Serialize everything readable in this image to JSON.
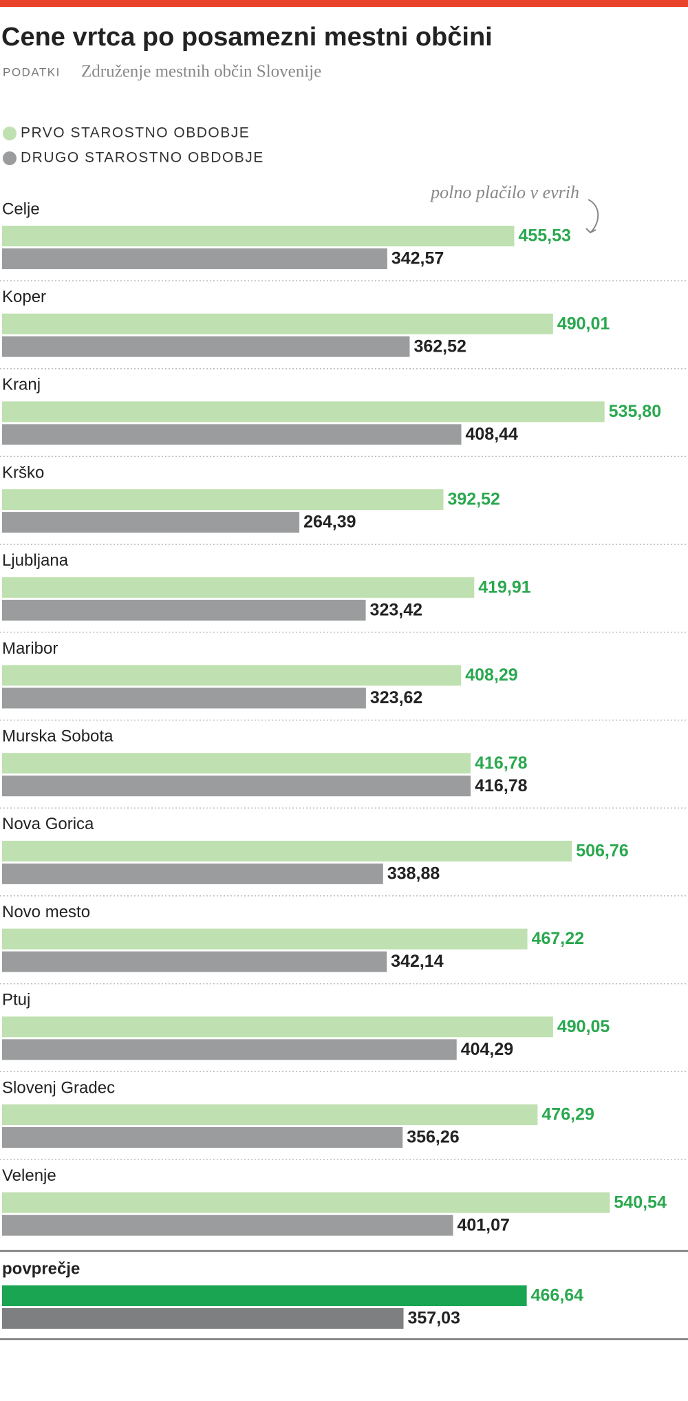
{
  "chart_data": {
    "type": "grouped-hbar",
    "title": "Cene vrtca po posamezni mestni občini",
    "source": {
      "label": "PODATKI",
      "text": "Združenje mestnih občin Slovenije"
    },
    "annotation": "polno plačilo v evrih",
    "categories": [
      "Celje",
      "Koper",
      "Kranj",
      "Krško",
      "Ljubljana",
      "Maribor",
      "Murska Sobota",
      "Nova Gorica",
      "Novo mesto",
      "Ptuj",
      "Slovenj Gradec",
      "Velenje"
    ],
    "series": [
      {
        "name": "PRVO STAROSTNO OBDOBJE",
        "color": "#bfe0b0",
        "label_color": "#2aa84f",
        "values": [
          455.53,
          490.01,
          535.8,
          392.52,
          419.91,
          408.29,
          416.78,
          506.76,
          467.22,
          490.05,
          476.29,
          540.54
        ],
        "value_labels": [
          "455,53",
          "490,01",
          "535,80",
          "392,52",
          "419,91",
          "408,29",
          "416,78",
          "506,76",
          "467,22",
          "490,05",
          "476,29",
          "540,54"
        ]
      },
      {
        "name": "DRUGO STAROSTNO OBDOBJE",
        "color": "#9a9c9d",
        "label_color": "#222222",
        "values": [
          342.57,
          362.52,
          408.44,
          264.39,
          323.42,
          323.62,
          416.78,
          338.88,
          342.14,
          404.29,
          356.26,
          401.07
        ],
        "value_labels": [
          "342,57",
          "362,52",
          "408,44",
          "264,39",
          "323,42",
          "323,62",
          "416,78",
          "338,88",
          "342,14",
          "404,29",
          "356,26",
          "401,07"
        ]
      }
    ],
    "average": {
      "label": "povprečje",
      "colors": [
        "#1aa553",
        "#7d7f80"
      ],
      "label_colors": [
        "#2aa84f",
        "#222222"
      ],
      "values": [
        466.64,
        357.03
      ],
      "value_labels": [
        "466,64",
        "357,03"
      ]
    }
  }
}
